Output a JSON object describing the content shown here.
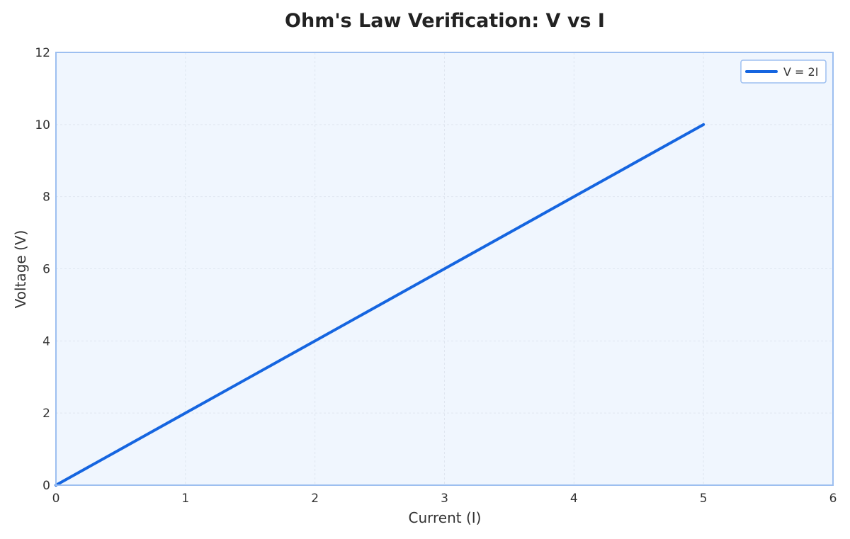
{
  "chart_data": {
    "type": "line",
    "title": "Ohm's Law Verification: V vs I",
    "xlabel": "Current (I)",
    "ylabel": "Voltage (V)",
    "xlim": [
      0,
      6
    ],
    "ylim": [
      0,
      12
    ],
    "xticks": [
      0,
      1,
      2,
      3,
      4,
      5,
      6
    ],
    "yticks": [
      0,
      2,
      4,
      6,
      8,
      10,
      12
    ],
    "grid": true,
    "legend_position": "top-right",
    "series": [
      {
        "name": "V = 2I",
        "color": "#1565e0",
        "x": [
          0,
          1,
          2,
          3,
          4,
          5
        ],
        "y": [
          0,
          2,
          4,
          6,
          8,
          10
        ]
      }
    ]
  },
  "colors": {
    "plot_background": "#f0f6fe",
    "plot_border": "#9dbff0",
    "grid": "#dfe6f0"
  }
}
